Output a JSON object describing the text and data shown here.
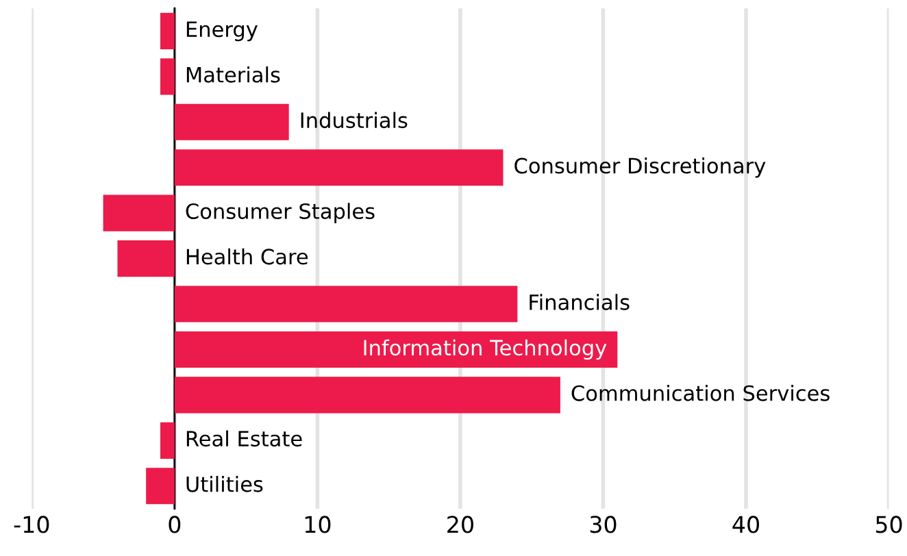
{
  "chart_data": {
    "type": "bar",
    "orientation": "horizontal",
    "categories": [
      "Energy",
      "Materials",
      "Industrials",
      "Consumer Discretionary",
      "Consumer Staples",
      "Health Care",
      "Financials",
      "Information Technology",
      "Communication Services",
      "Real Estate",
      "Utilities"
    ],
    "values": [
      -1,
      -1,
      8,
      23,
      -5,
      -4,
      24,
      31,
      27,
      -1,
      -2
    ],
    "color": "#ec1b4b",
    "xlim": [
      -10,
      50
    ],
    "xticks": [
      -10,
      0,
      10,
      20,
      30,
      40,
      50
    ],
    "grid": "x",
    "tick_labels": "x",
    "legend": false
  }
}
